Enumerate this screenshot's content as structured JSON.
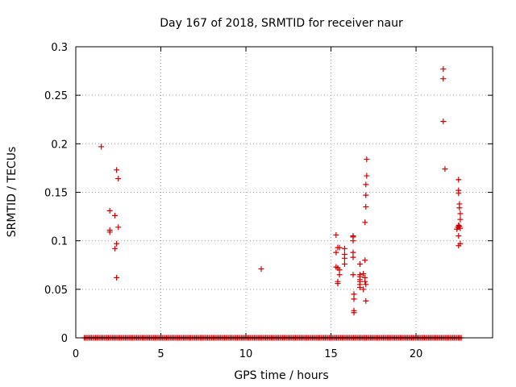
{
  "chart_data": {
    "type": "scatter",
    "title": "Day 167 of 2018, SRMTID for receiver naur",
    "xlabel": "GPS time / hours",
    "ylabel": "SRMTID / TECUs",
    "xlim": [
      0,
      24.5
    ],
    "ylim": [
      0,
      0.3
    ],
    "xticks": [
      0,
      5,
      10,
      15,
      20
    ],
    "xtick_labels": [
      "0",
      "5",
      "10",
      "15",
      "20"
    ],
    "yticks": [
      0,
      0.05,
      0.1,
      0.15,
      0.2,
      0.25,
      0.3
    ],
    "ytick_labels": [
      "0",
      "0.05",
      "0.1",
      "0.15",
      "0.2",
      "0.25",
      "0.3"
    ],
    "grid": true,
    "marker": "+",
    "color": "#cc0000",
    "baseline": {
      "y": 0,
      "x_start": 0.5,
      "x_end": 22.7,
      "step": 0.0833
    },
    "points": [
      [
        1.5,
        0.197
      ],
      [
        2.0,
        0.131
      ],
      [
        2.0,
        0.111
      ],
      [
        2.0,
        0.109
      ],
      [
        2.3,
        0.126
      ],
      [
        2.3,
        0.092
      ],
      [
        2.4,
        0.173
      ],
      [
        2.4,
        0.097
      ],
      [
        2.4,
        0.062
      ],
      [
        2.5,
        0.164
      ],
      [
        2.5,
        0.114
      ],
      [
        10.9,
        0.071
      ],
      [
        15.3,
        0.106
      ],
      [
        15.3,
        0.088
      ],
      [
        15.3,
        0.073
      ],
      [
        15.4,
        0.093
      ],
      [
        15.4,
        0.072
      ],
      [
        15.4,
        0.056
      ],
      [
        15.5,
        0.093
      ],
      [
        15.5,
        0.07
      ],
      [
        15.5,
        0.065
      ],
      [
        15.4,
        0.058
      ],
      [
        15.8,
        0.092
      ],
      [
        15.8,
        0.086
      ],
      [
        15.8,
        0.082
      ],
      [
        15.8,
        0.076
      ],
      [
        16.3,
        0.105
      ],
      [
        16.3,
        0.104
      ],
      [
        16.3,
        0.1
      ],
      [
        16.3,
        0.088
      ],
      [
        16.3,
        0.083
      ],
      [
        16.3,
        0.065
      ],
      [
        16.35,
        0.045
      ],
      [
        16.35,
        0.04
      ],
      [
        16.35,
        0.028
      ],
      [
        16.35,
        0.026
      ],
      [
        16.7,
        0.076
      ],
      [
        16.7,
        0.065
      ],
      [
        16.7,
        0.063
      ],
      [
        16.7,
        0.06
      ],
      [
        16.7,
        0.058
      ],
      [
        16.7,
        0.055
      ],
      [
        16.7,
        0.052
      ],
      [
        16.9,
        0.066
      ],
      [
        16.9,
        0.05
      ],
      [
        17.0,
        0.08
      ],
      [
        17.0,
        0.062
      ],
      [
        17.0,
        0.058
      ],
      [
        17.05,
        0.055
      ],
      [
        17.05,
        0.038
      ],
      [
        17.1,
        0.184
      ],
      [
        17.1,
        0.167
      ],
      [
        17.05,
        0.158
      ],
      [
        17.05,
        0.147
      ],
      [
        17.05,
        0.135
      ],
      [
        17.0,
        0.119
      ],
      [
        21.6,
        0.277
      ],
      [
        21.6,
        0.267
      ],
      [
        21.6,
        0.223
      ],
      [
        21.7,
        0.174
      ],
      [
        22.5,
        0.163
      ],
      [
        22.5,
        0.152
      ],
      [
        22.5,
        0.149
      ],
      [
        22.55,
        0.138
      ],
      [
        22.55,
        0.134
      ],
      [
        22.6,
        0.128
      ],
      [
        22.6,
        0.122
      ],
      [
        22.5,
        0.116
      ],
      [
        22.55,
        0.115
      ],
      [
        22.45,
        0.114
      ],
      [
        22.6,
        0.113
      ],
      [
        22.4,
        0.112
      ],
      [
        22.5,
        0.105
      ],
      [
        22.6,
        0.097
      ],
      [
        22.5,
        0.095
      ]
    ]
  }
}
